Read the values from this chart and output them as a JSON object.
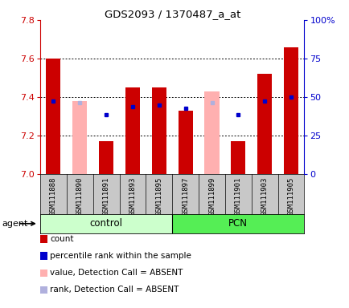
{
  "title": "GDS2093 / 1370487_a_at",
  "samples": [
    "GSM111888",
    "GSM111890",
    "GSM111891",
    "GSM111893",
    "GSM111895",
    "GSM111897",
    "GSM111899",
    "GSM111901",
    "GSM111903",
    "GSM111905"
  ],
  "red_bar_top": [
    7.6,
    null,
    7.17,
    7.45,
    7.45,
    7.33,
    null,
    7.17,
    7.52,
    7.66
  ],
  "red_bar_present": [
    true,
    false,
    true,
    true,
    true,
    true,
    false,
    true,
    true,
    true
  ],
  "pink_bar_top": [
    null,
    7.38,
    null,
    null,
    null,
    null,
    7.43,
    null,
    null,
    null
  ],
  "blue_dot_y": [
    7.38,
    null,
    7.31,
    7.35,
    7.36,
    7.34,
    null,
    7.31,
    7.38,
    7.4
  ],
  "blue_dot_present": [
    true,
    false,
    true,
    true,
    true,
    true,
    false,
    true,
    true,
    true
  ],
  "light_blue_dot_y": [
    null,
    7.37,
    null,
    null,
    null,
    null,
    7.37,
    null,
    null,
    null
  ],
  "bar_bottom": 7.0,
  "ylim": [
    7.0,
    7.8
  ],
  "yticks": [
    7.0,
    7.2,
    7.4,
    7.6,
    7.8
  ],
  "right_ytick_vals": [
    0,
    25,
    50,
    75,
    100
  ],
  "right_ytick_labels": [
    "0",
    "25",
    "50",
    "75",
    "100%"
  ],
  "control_color": "#ccffcc",
  "pcn_color": "#55ee55",
  "bar_width": 0.55,
  "red_color": "#cc0000",
  "blue_color": "#0000cc",
  "pink_color": "#ffb0b0",
  "light_blue_color": "#b0b0dd",
  "bg_color": "#ffffff",
  "left_label_color": "#cc0000",
  "right_label_color": "#0000cc",
  "grid_yticks": [
    7.2,
    7.4,
    7.6
  ],
  "legend_items": [
    {
      "color": "#cc0000",
      "label": "count"
    },
    {
      "color": "#0000cc",
      "label": "percentile rank within the sample"
    },
    {
      "color": "#ffb0b0",
      "label": "value, Detection Call = ABSENT"
    },
    {
      "color": "#b0b0dd",
      "label": "rank, Detection Call = ABSENT"
    }
  ]
}
